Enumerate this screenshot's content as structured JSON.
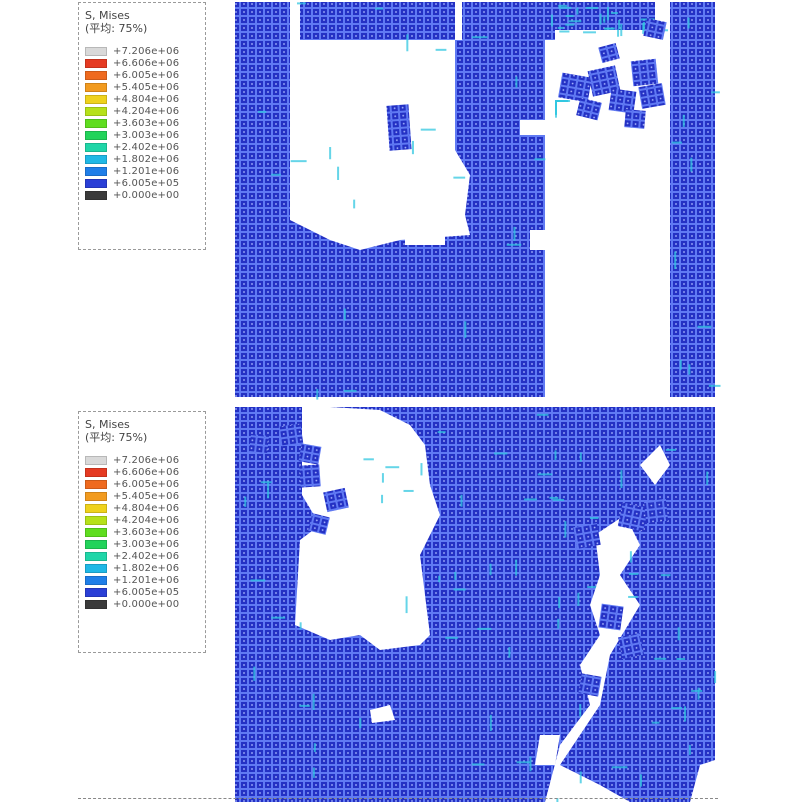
{
  "legend": {
    "title": "S, Mises",
    "subtitle": "(平均: 75%)",
    "entries": [
      {
        "label": "+7.206e+06",
        "color": "#d9d9d9"
      },
      {
        "label": "+6.606e+06",
        "color": "#e53a22"
      },
      {
        "label": "+6.005e+06",
        "color": "#ef6a1e"
      },
      {
        "label": "+5.405e+06",
        "color": "#f29b1f"
      },
      {
        "label": "+4.804e+06",
        "color": "#efd21c"
      },
      {
        "label": "+4.204e+06",
        "color": "#b6e11a"
      },
      {
        "label": "+3.603e+06",
        "color": "#5fdd1f"
      },
      {
        "label": "+3.003e+06",
        "color": "#22d35a"
      },
      {
        "label": "+2.402e+06",
        "color": "#1fd6a8"
      },
      {
        "label": "+1.802e+06",
        "color": "#1fb8e6"
      },
      {
        "label": "+1.201e+06",
        "color": "#1f7ee8"
      },
      {
        "label": "+6.005e+05",
        "color": "#2a3fd6"
      },
      {
        "label": "+0.000e+00",
        "color": "#3a3a3a"
      }
    ]
  },
  "colors": {
    "mesh_base": "#2431c4",
    "mesh_line": "#6f8cff",
    "highlight": "#31c7e0",
    "background": "#ffffff"
  }
}
